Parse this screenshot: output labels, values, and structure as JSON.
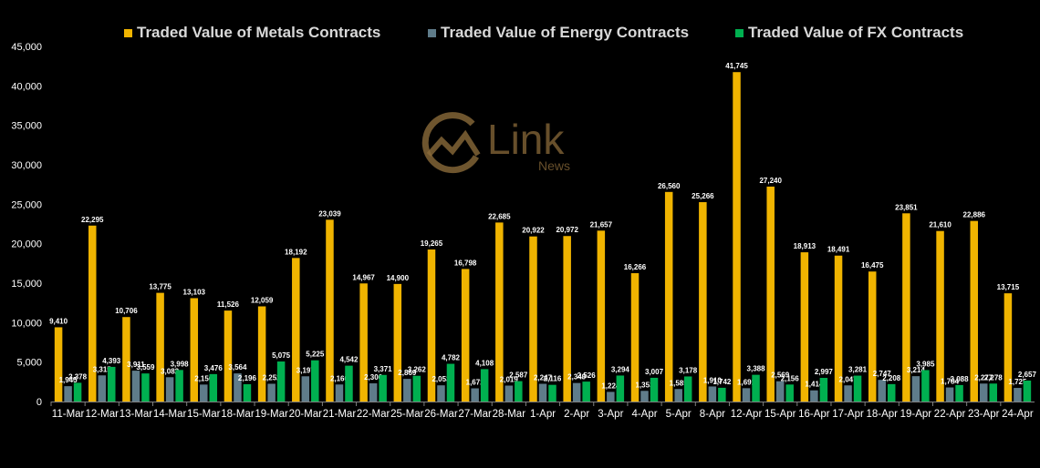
{
  "chart_data": {
    "type": "bar",
    "categories": [
      "11-Mar",
      "12-Mar",
      "13-Mar",
      "14-Mar",
      "15-Mar",
      "18-Mar",
      "19-Mar",
      "20-Mar",
      "21-Mar",
      "22-Mar",
      "25-Mar",
      "26-Mar",
      "27-Mar",
      "28-Mar",
      "1-Apr",
      "2-Apr",
      "3-Apr",
      "4-Apr",
      "5-Apr",
      "8-Apr",
      "12-Apr",
      "15-Apr",
      "16-Apr",
      "17-Apr",
      "18-Apr",
      "19-Apr",
      "22-Apr",
      "23-Apr",
      "24-Apr"
    ],
    "series": [
      {
        "name": "Traded Value of Metals Contracts",
        "color": "#f0b400",
        "values": [
          9410,
          22295,
          10706,
          13775,
          13103,
          11526,
          12059,
          18192,
          23039,
          14967,
          14900,
          19265,
          16798,
          22685,
          20922,
          20972,
          21657,
          16266,
          26560,
          25266,
          41745,
          27240,
          18913,
          18491,
          16475,
          23851,
          21610,
          22886,
          13715
        ],
        "labels": [
          "9,410",
          "22,295",
          "10,706",
          "13,775",
          "13,103",
          "11,526",
          "12,059",
          "18,192",
          "23,039",
          "14,967",
          "14,900",
          "19,265",
          "16,798",
          "22,685",
          "20,922",
          "20,972",
          "21,657",
          "16,266",
          "26,560",
          "25,266",
          "41,745",
          "27,240",
          "18,913",
          "18,491",
          "16,475",
          "23,851",
          "21,610",
          "22,886",
          "13,715"
        ]
      },
      {
        "name": "Traded Value of Energy Contracts",
        "color": "#5f7c8a",
        "values": [
          1945,
          3315,
          3911,
          3082,
          2150,
          3564,
          2252,
          3197,
          2160,
          2306,
          2869,
          2053,
          1672,
          2019,
          2247,
          2349,
          1224,
          1353,
          1585,
          1910,
          1691,
          2569,
          1414,
          2047,
          2747,
          3214,
          1784,
          2277,
          1725
        ],
        "labels": [
          "1,945",
          "3,315",
          "3,911",
          "3,082",
          "2,150",
          "3,564",
          "2,252",
          "3,197",
          "2,160",
          "2,306",
          "2,869",
          "2,053",
          "1,672",
          "2,019",
          "2,247",
          "2,349",
          "1,224",
          "1,353",
          "1,585",
          "1,910",
          "1,691",
          "2,569",
          "1,414",
          "2,047",
          "2,747",
          "3,214",
          "1,784",
          "2,277",
          "1,725"
        ]
      },
      {
        "name": "Traded Value of FX Contracts",
        "color": "#00b050",
        "values": [
          2378,
          4393,
          3559,
          3998,
          3476,
          2196,
          5075,
          5225,
          4542,
          3371,
          3262,
          4782,
          4108,
          2587,
          2116,
          2526,
          3294,
          3007,
          3178,
          1742,
          3388,
          2156,
          2997,
          3281,
          2208,
          3985,
          2088,
          2278,
          2657
        ],
        "labels": [
          "2,378",
          "4,393",
          "3,559",
          "3,998",
          "3,476",
          "2,196",
          "5,075",
          "5,225",
          "4,542",
          "3,371",
          "3,262",
          "4,782",
          "4,108",
          "2,587",
          "2,116",
          "2,526",
          "3,294",
          "3,007",
          "3,178",
          "1,742",
          "3,388",
          "2,156",
          "2,997",
          "3,281",
          "2,208",
          "3,985",
          "2,088",
          "2,278",
          "2,657"
        ]
      }
    ],
    "yticks": [
      "0",
      "5,000",
      "10,000",
      "15,000",
      "20,000",
      "25,000",
      "30,000",
      "35,000",
      "40,000",
      "45,000"
    ],
    "ylim": [
      0,
      45000
    ],
    "grid": false,
    "legend_position": "top",
    "title": "",
    "xlabel": "",
    "ylabel": ""
  },
  "watermark": {
    "logo_text": "Link",
    "sub_text": "News",
    "color": "#8a6a3a"
  },
  "colors": {
    "background": "#000000",
    "text": "#ffffff",
    "axis": "#808080"
  }
}
